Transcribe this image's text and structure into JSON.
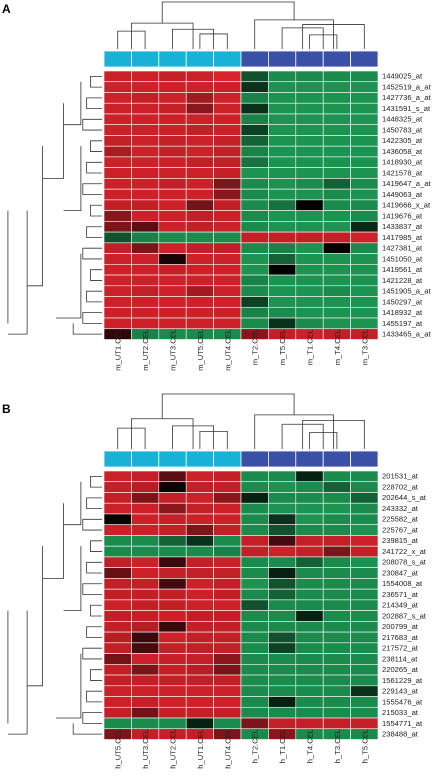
{
  "colors": {
    "untreated_bar": "#17b2d6",
    "treated_bar": "#3a4fa6",
    "red_full": "#e4252d",
    "green_full": "#1fa35a",
    "black": "#000000"
  },
  "chart_data": [
    {
      "type": "heatmap",
      "panel_label": "A",
      "columns": [
        "m_UT1.CEL",
        "m_UT2.CEL",
        "m_UT3.CEL",
        "m_UT5.CEL",
        "m_UT4.CEL",
        "m_T2.CEL",
        "m_T5.CEL",
        "m_T1.CEL",
        "m_T4.CEL",
        "m_T3.CEL"
      ],
      "column_groups": [
        "untreated",
        "untreated",
        "untreated",
        "untreated",
        "untreated",
        "treated",
        "treated",
        "treated",
        "treated",
        "treated"
      ],
      "rows": [
        "1449025_at",
        "1452519_a_at",
        "1427736_a_at",
        "1431591_s_at",
        "1448325_at",
        "1450783_at",
        "1422305_at",
        "1436058_at",
        "1418930_at",
        "1421578_at",
        "1419647_a_at",
        "1449063_at",
        "1419666_x_at",
        "1419676_at",
        "1433837_at",
        "1417985_at",
        "1427381_at",
        "1451050_at",
        "1419561_at",
        "1421228_at",
        "1451905_a_at",
        "1450297_at",
        "1418932_at",
        "1455197_at",
        "1433465_a_at"
      ],
      "values": [
        [
          0.9,
          0.9,
          0.85,
          0.9,
          0.95,
          -0.5,
          -0.85,
          -0.85,
          -0.85,
          -0.85
        ],
        [
          0.9,
          0.9,
          0.9,
          0.9,
          0.9,
          -0.3,
          -0.9,
          -0.9,
          -0.9,
          -0.9
        ],
        [
          0.9,
          0.85,
          0.9,
          0.7,
          0.9,
          -0.8,
          -0.9,
          -0.9,
          -0.9,
          -0.9
        ],
        [
          0.9,
          0.9,
          0.85,
          0.6,
          0.9,
          -0.3,
          -0.9,
          -0.9,
          -0.9,
          -0.9
        ],
        [
          0.9,
          0.9,
          0.9,
          0.9,
          0.9,
          -0.8,
          -0.9,
          -0.9,
          -0.9,
          -0.9
        ],
        [
          0.9,
          0.9,
          0.9,
          0.85,
          0.9,
          -0.4,
          -0.9,
          -0.9,
          -0.9,
          -0.9
        ],
        [
          0.85,
          0.9,
          0.85,
          0.9,
          0.85,
          -0.6,
          -0.9,
          -0.9,
          -0.9,
          -0.9
        ],
        [
          0.75,
          0.9,
          0.85,
          0.9,
          0.85,
          -0.8,
          -0.9,
          -0.9,
          -0.9,
          -0.9
        ],
        [
          0.9,
          0.9,
          0.9,
          0.85,
          0.85,
          -0.7,
          -0.9,
          -0.9,
          -0.9,
          -0.9
        ],
        [
          0.9,
          0.9,
          0.9,
          0.9,
          0.85,
          -0.9,
          -0.9,
          -0.9,
          -0.9,
          -0.9
        ],
        [
          0.9,
          0.9,
          0.85,
          0.9,
          0.55,
          -0.85,
          -0.9,
          -0.85,
          -0.6,
          -0.85
        ],
        [
          0.9,
          0.9,
          0.9,
          0.9,
          0.6,
          -0.85,
          -0.9,
          -0.9,
          -0.85,
          -0.9
        ],
        [
          0.85,
          0.85,
          0.9,
          0.5,
          0.85,
          -0.85,
          -0.7,
          0.0,
          -0.85,
          -0.85
        ],
        [
          0.6,
          0.9,
          0.9,
          0.85,
          0.9,
          -0.85,
          -0.9,
          -0.9,
          -0.9,
          -0.85
        ],
        [
          0.55,
          0.4,
          0.9,
          0.85,
          0.9,
          -0.85,
          -0.9,
          -0.9,
          -0.9,
          -0.25
        ],
        [
          -0.5,
          -0.8,
          -0.85,
          -0.85,
          -0.85,
          0.85,
          0.85,
          0.85,
          0.85,
          0.9
        ],
        [
          0.85,
          0.55,
          0.9,
          0.85,
          0.85,
          -0.85,
          -0.8,
          -0.9,
          0.0,
          -0.85
        ],
        [
          0.9,
          0.9,
          0.1,
          0.9,
          0.9,
          -0.9,
          -0.6,
          -0.9,
          -0.9,
          -0.9
        ],
        [
          0.9,
          0.9,
          0.85,
          0.9,
          0.9,
          -0.9,
          0.0,
          -0.9,
          -0.9,
          -0.9
        ],
        [
          0.9,
          0.9,
          0.9,
          0.9,
          0.9,
          -0.8,
          -0.9,
          -0.9,
          -0.9,
          -0.9
        ],
        [
          0.9,
          0.85,
          0.9,
          0.7,
          0.9,
          -0.85,
          -0.9,
          -0.9,
          -0.85,
          -0.9
        ],
        [
          0.9,
          0.9,
          0.9,
          0.9,
          0.9,
          -0.4,
          -0.9,
          -0.9,
          -0.9,
          -0.9
        ],
        [
          0.9,
          0.9,
          0.9,
          0.9,
          0.9,
          -0.8,
          -0.85,
          -0.9,
          -0.9,
          -0.9
        ],
        [
          0.9,
          0.9,
          0.9,
          0.9,
          0.9,
          -0.85,
          -0.3,
          -0.85,
          -0.9,
          -0.9
        ],
        [
          0.2,
          -0.8,
          -0.85,
          -0.85,
          -0.85,
          0.6,
          0.85,
          0.9,
          0.85,
          0.85
        ]
      ]
    },
    {
      "type": "heatmap",
      "panel_label": "B",
      "columns": [
        "h_UT5.CEL",
        "h_UT3.CEL",
        "h_UT2.CEL",
        "h_UT1.CEL",
        "h_UT4.CEL",
        "h_T2.CEL",
        "h_T1.CEL",
        "h_T4.CEL",
        "h_T3.CEL",
        "h_T5.CEL"
      ],
      "column_groups": [
        "untreated",
        "untreated",
        "untreated",
        "untreated",
        "untreated",
        "treated",
        "treated",
        "treated",
        "treated",
        "treated"
      ],
      "rows": [
        "201531_at",
        "228702_at",
        "202644_s_at",
        "243332_at",
        "225582_at",
        "225767_at",
        "239815_at",
        "241722_x_at",
        "208078_s_at",
        "230847_at",
        "1554008_at",
        "236571_at",
        "214349_at",
        "202887_s_at",
        "200799_at",
        "217683_at",
        "217572_at",
        "238114_at",
        "220265_at",
        "1561229_at",
        "229143_at",
        "1555476_at",
        "215033_at",
        "1554771_at",
        "238488_at"
      ],
      "values": [
        [
          0.9,
          0.85,
          0.4,
          0.9,
          0.85,
          -0.85,
          -0.85,
          -0.2,
          -0.85,
          -0.85
        ],
        [
          0.85,
          0.8,
          0.05,
          0.85,
          0.85,
          -0.85,
          -0.9,
          -0.85,
          -0.6,
          -0.85
        ],
        [
          0.85,
          0.55,
          0.85,
          0.9,
          0.6,
          -0.2,
          -0.85,
          -0.85,
          -0.85,
          -0.6
        ],
        [
          0.9,
          0.9,
          0.6,
          0.85,
          0.9,
          -0.85,
          -0.9,
          -0.9,
          -0.9,
          -0.85
        ],
        [
          0.05,
          0.9,
          0.85,
          0.9,
          0.9,
          -0.85,
          -0.3,
          -0.9,
          -0.85,
          -0.85
        ],
        [
          0.9,
          0.9,
          0.85,
          0.55,
          0.85,
          -0.85,
          -0.5,
          -0.85,
          -0.85,
          -0.9
        ],
        [
          -0.85,
          -0.85,
          -0.6,
          -0.3,
          -0.85,
          0.85,
          0.3,
          0.85,
          0.85,
          0.9
        ],
        [
          -0.85,
          -0.85,
          -0.85,
          -0.85,
          -0.8,
          0.85,
          0.9,
          0.85,
          0.55,
          0.85
        ],
        [
          0.85,
          0.9,
          0.25,
          0.85,
          0.9,
          -0.85,
          -0.85,
          -0.6,
          -0.85,
          -0.9
        ],
        [
          0.45,
          0.9,
          0.85,
          0.85,
          0.85,
          -0.85,
          -0.2,
          -0.85,
          -0.85,
          -0.85
        ],
        [
          0.85,
          0.85,
          0.3,
          0.9,
          0.85,
          -0.9,
          -0.5,
          -0.85,
          -0.85,
          -0.85
        ],
        [
          0.85,
          0.85,
          0.85,
          0.9,
          0.85,
          -0.85,
          -0.6,
          -0.85,
          -0.85,
          -0.85
        ],
        [
          0.9,
          0.85,
          0.85,
          0.9,
          0.9,
          -0.5,
          -0.85,
          -0.85,
          -0.85,
          -0.85
        ],
        [
          0.85,
          0.85,
          0.9,
          0.85,
          0.85,
          -0.85,
          -0.85,
          -0.2,
          -0.85,
          -0.85
        ],
        [
          0.85,
          0.8,
          0.25,
          0.85,
          0.85,
          -0.85,
          -0.85,
          -0.85,
          -0.85,
          -0.85
        ],
        [
          0.8,
          0.25,
          0.9,
          0.85,
          0.85,
          -0.85,
          -0.5,
          -0.85,
          -0.85,
          -0.85
        ],
        [
          0.85,
          0.3,
          0.85,
          0.85,
          0.85,
          -0.85,
          -0.4,
          -0.85,
          -0.85,
          -0.85
        ],
        [
          0.5,
          0.9,
          0.85,
          0.85,
          0.6,
          -0.85,
          -0.85,
          -0.85,
          -0.85,
          -0.85
        ],
        [
          0.85,
          0.55,
          0.85,
          0.8,
          0.55,
          -0.85,
          -0.85,
          -0.85,
          -0.85,
          -0.85
        ],
        [
          0.85,
          0.85,
          0.85,
          0.85,
          0.85,
          -0.85,
          -0.85,
          -0.85,
          -0.85,
          -0.85
        ],
        [
          0.9,
          0.9,
          0.9,
          0.9,
          0.9,
          -0.85,
          -0.85,
          -0.85,
          -0.85,
          -0.3
        ],
        [
          0.9,
          0.85,
          0.9,
          0.9,
          0.9,
          -0.85,
          -0.2,
          -0.85,
          -0.85,
          -0.85
        ],
        [
          0.85,
          0.5,
          0.85,
          0.85,
          0.85,
          -0.85,
          -0.85,
          -0.85,
          -0.85,
          -0.85
        ],
        [
          -0.85,
          -0.85,
          -0.85,
          -0.2,
          -0.85,
          0.55,
          0.85,
          0.85,
          0.85,
          0.85
        ],
        [
          0.55,
          0.85,
          0.85,
          0.85,
          0.55,
          -0.85,
          0.6,
          -0.85,
          -0.85,
          -0.85
        ]
      ]
    }
  ]
}
